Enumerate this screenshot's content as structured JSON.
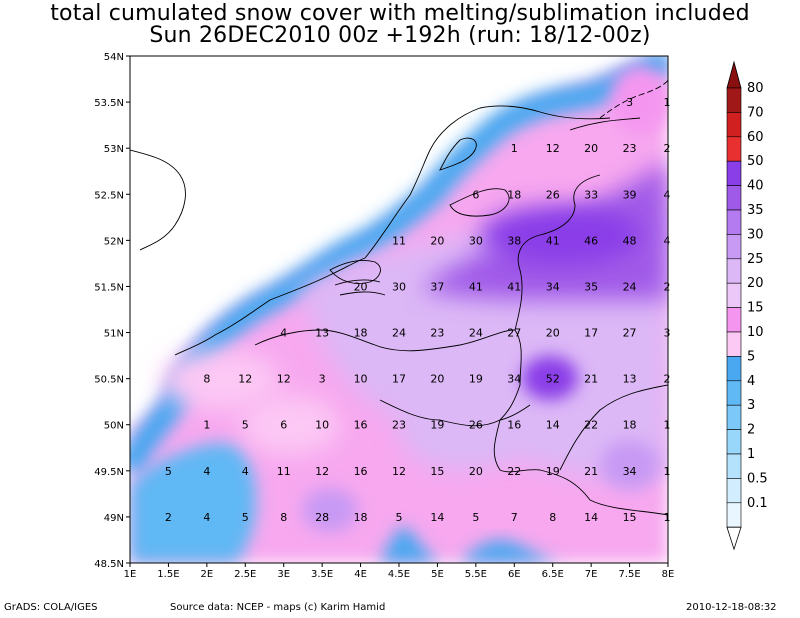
{
  "title": {
    "line1": "total cumulated snow cover with melting/sublimation included",
    "line2": "Sun 26DEC2010 00z  +192h (run: 18/12-00z)"
  },
  "footer": {
    "left": "GrADS: COLA/IGES",
    "center": "Source data: NCEP - maps (c) Karim Hamid",
    "right": "2010-12-18-08:32"
  },
  "axes": {
    "lat_labels": [
      "54N",
      "53.5N",
      "53N",
      "52.5N",
      "52N",
      "51.5N",
      "51N",
      "50.5N",
      "50N",
      "49.5N",
      "49N",
      "48.5N"
    ],
    "lon_labels": [
      "1E",
      "1.5E",
      "2E",
      "2.5E",
      "3E",
      "3.5E",
      "4E",
      "4.5E",
      "5E",
      "5.5E",
      "6E",
      "6.5E",
      "7E",
      "7.5E",
      "8E"
    ]
  },
  "colorbar": {
    "labels": [
      "80",
      "70",
      "60",
      "50",
      "40",
      "35",
      "30",
      "25",
      "20",
      "15",
      "10",
      "5",
      "4",
      "3",
      "2",
      "1",
      "0.5",
      "0.1"
    ],
    "colors": [
      "#a01818",
      "#d02020",
      "#e83030",
      "#8a3ee8",
      "#a05ae8",
      "#b47af0",
      "#c89af4",
      "#dcb8f6",
      "#ecc8f8",
      "#f496f0",
      "#fcc8f4",
      "#4aa8f0",
      "#60b8f4",
      "#7cc8f8",
      "#98d6fa",
      "#b4e2fc",
      "#d2eefe",
      "#eaf6ff"
    ]
  },
  "values": [
    {
      "lon": 7.5,
      "lat": 53.5,
      "v": "3"
    },
    {
      "lon": 8.0,
      "lat": 53.5,
      "v": "1"
    },
    {
      "lon": 6.0,
      "lat": 53.0,
      "v": "1"
    },
    {
      "lon": 6.5,
      "lat": 53.0,
      "v": "12"
    },
    {
      "lon": 7.0,
      "lat": 53.0,
      "v": "20"
    },
    {
      "lon": 7.5,
      "lat": 53.0,
      "v": "23"
    },
    {
      "lon": 8.0,
      "lat": 53.0,
      "v": "2"
    },
    {
      "lon": 5.5,
      "lat": 52.5,
      "v": "6"
    },
    {
      "lon": 6.0,
      "lat": 52.5,
      "v": "18"
    },
    {
      "lon": 6.5,
      "lat": 52.5,
      "v": "26"
    },
    {
      "lon": 7.0,
      "lat": 52.5,
      "v": "33"
    },
    {
      "lon": 7.5,
      "lat": 52.5,
      "v": "39"
    },
    {
      "lon": 8.0,
      "lat": 52.5,
      "v": "4"
    },
    {
      "lon": 4.5,
      "lat": 52.0,
      "v": "11"
    },
    {
      "lon": 5.0,
      "lat": 52.0,
      "v": "20"
    },
    {
      "lon": 5.5,
      "lat": 52.0,
      "v": "30"
    },
    {
      "lon": 6.0,
      "lat": 52.0,
      "v": "38"
    },
    {
      "lon": 6.5,
      "lat": 52.0,
      "v": "41"
    },
    {
      "lon": 7.0,
      "lat": 52.0,
      "v": "46"
    },
    {
      "lon": 7.5,
      "lat": 52.0,
      "v": "48"
    },
    {
      "lon": 8.0,
      "lat": 52.0,
      "v": "4"
    },
    {
      "lon": 4.0,
      "lat": 51.5,
      "v": "20"
    },
    {
      "lon": 4.5,
      "lat": 51.5,
      "v": "30"
    },
    {
      "lon": 5.0,
      "lat": 51.5,
      "v": "37"
    },
    {
      "lon": 5.5,
      "lat": 51.5,
      "v": "41"
    },
    {
      "lon": 6.0,
      "lat": 51.5,
      "v": "41"
    },
    {
      "lon": 6.5,
      "lat": 51.5,
      "v": "34"
    },
    {
      "lon": 7.0,
      "lat": 51.5,
      "v": "35"
    },
    {
      "lon": 7.5,
      "lat": 51.5,
      "v": "24"
    },
    {
      "lon": 8.0,
      "lat": 51.5,
      "v": "2"
    },
    {
      "lon": 3.0,
      "lat": 51.0,
      "v": "4"
    },
    {
      "lon": 3.5,
      "lat": 51.0,
      "v": "13"
    },
    {
      "lon": 4.0,
      "lat": 51.0,
      "v": "18"
    },
    {
      "lon": 4.5,
      "lat": 51.0,
      "v": "24"
    },
    {
      "lon": 5.0,
      "lat": 51.0,
      "v": "23"
    },
    {
      "lon": 5.5,
      "lat": 51.0,
      "v": "24"
    },
    {
      "lon": 6.0,
      "lat": 51.0,
      "v": "27"
    },
    {
      "lon": 6.5,
      "lat": 51.0,
      "v": "20"
    },
    {
      "lon": 7.0,
      "lat": 51.0,
      "v": "17"
    },
    {
      "lon": 7.5,
      "lat": 51.0,
      "v": "27"
    },
    {
      "lon": 8.0,
      "lat": 51.0,
      "v": "3"
    },
    {
      "lon": 2.0,
      "lat": 50.5,
      "v": "8"
    },
    {
      "lon": 2.5,
      "lat": 50.5,
      "v": "12"
    },
    {
      "lon": 3.0,
      "lat": 50.5,
      "v": "12"
    },
    {
      "lon": 3.5,
      "lat": 50.5,
      "v": "3"
    },
    {
      "lon": 4.0,
      "lat": 50.5,
      "v": "10"
    },
    {
      "lon": 4.5,
      "lat": 50.5,
      "v": "17"
    },
    {
      "lon": 5.0,
      "lat": 50.5,
      "v": "20"
    },
    {
      "lon": 5.5,
      "lat": 50.5,
      "v": "19"
    },
    {
      "lon": 6.0,
      "lat": 50.5,
      "v": "34"
    },
    {
      "lon": 6.5,
      "lat": 50.5,
      "v": "52"
    },
    {
      "lon": 7.0,
      "lat": 50.5,
      "v": "21"
    },
    {
      "lon": 7.5,
      "lat": 50.5,
      "v": "13"
    },
    {
      "lon": 8.0,
      "lat": 50.5,
      "v": "2"
    },
    {
      "lon": 2.0,
      "lat": 50.0,
      "v": "1"
    },
    {
      "lon": 2.5,
      "lat": 50.0,
      "v": "5"
    },
    {
      "lon": 3.0,
      "lat": 50.0,
      "v": "6"
    },
    {
      "lon": 3.5,
      "lat": 50.0,
      "v": "10"
    },
    {
      "lon": 4.0,
      "lat": 50.0,
      "v": "16"
    },
    {
      "lon": 4.5,
      "lat": 50.0,
      "v": "23"
    },
    {
      "lon": 5.0,
      "lat": 50.0,
      "v": "19"
    },
    {
      "lon": 5.5,
      "lat": 50.0,
      "v": "26"
    },
    {
      "lon": 6.0,
      "lat": 50.0,
      "v": "16"
    },
    {
      "lon": 6.5,
      "lat": 50.0,
      "v": "14"
    },
    {
      "lon": 7.0,
      "lat": 50.0,
      "v": "22"
    },
    {
      "lon": 7.5,
      "lat": 50.0,
      "v": "18"
    },
    {
      "lon": 8.0,
      "lat": 50.0,
      "v": "1"
    },
    {
      "lon": 1.5,
      "lat": 49.5,
      "v": "5"
    },
    {
      "lon": 2.0,
      "lat": 49.5,
      "v": "4"
    },
    {
      "lon": 2.5,
      "lat": 49.5,
      "v": "4"
    },
    {
      "lon": 3.0,
      "lat": 49.5,
      "v": "11"
    },
    {
      "lon": 3.5,
      "lat": 49.5,
      "v": "12"
    },
    {
      "lon": 4.0,
      "lat": 49.5,
      "v": "16"
    },
    {
      "lon": 4.5,
      "lat": 49.5,
      "v": "12"
    },
    {
      "lon": 5.0,
      "lat": 49.5,
      "v": "15"
    },
    {
      "lon": 5.5,
      "lat": 49.5,
      "v": "20"
    },
    {
      "lon": 6.0,
      "lat": 49.5,
      "v": "22"
    },
    {
      "lon": 6.5,
      "lat": 49.5,
      "v": "19"
    },
    {
      "lon": 7.0,
      "lat": 49.5,
      "v": "21"
    },
    {
      "lon": 7.5,
      "lat": 49.5,
      "v": "34"
    },
    {
      "lon": 8.0,
      "lat": 49.5,
      "v": "1"
    },
    {
      "lon": 1.5,
      "lat": 49.0,
      "v": "2"
    },
    {
      "lon": 2.0,
      "lat": 49.0,
      "v": "4"
    },
    {
      "lon": 2.5,
      "lat": 49.0,
      "v": "5"
    },
    {
      "lon": 3.0,
      "lat": 49.0,
      "v": "8"
    },
    {
      "lon": 3.5,
      "lat": 49.0,
      "v": "28"
    },
    {
      "lon": 4.0,
      "lat": 49.0,
      "v": "18"
    },
    {
      "lon": 4.5,
      "lat": 49.0,
      "v": "5"
    },
    {
      "lon": 5.0,
      "lat": 49.0,
      "v": "14"
    },
    {
      "lon": 5.5,
      "lat": 49.0,
      "v": "5"
    },
    {
      "lon": 6.0,
      "lat": 49.0,
      "v": "7"
    },
    {
      "lon": 6.5,
      "lat": 49.0,
      "v": "8"
    },
    {
      "lon": 7.0,
      "lat": 49.0,
      "v": "14"
    },
    {
      "lon": 7.5,
      "lat": 49.0,
      "v": "15"
    },
    {
      "lon": 8.0,
      "lat": 49.0,
      "v": "1"
    }
  ]
}
